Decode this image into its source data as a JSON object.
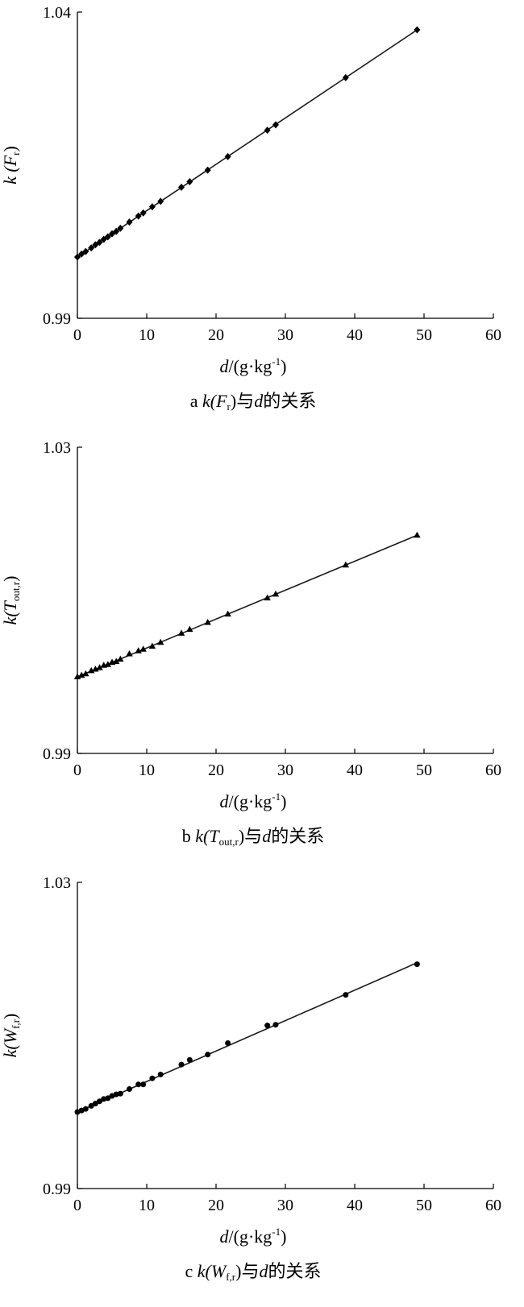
{
  "chart_data": [
    {
      "id": "a",
      "type": "scatter",
      "marker": "diamond",
      "xlabel": {
        "var": "d",
        "unit_pre": "/(g·kg",
        "sup": "-1",
        "unit_post": ")"
      },
      "ylabel": {
        "pre": "k (",
        "var": "F",
        "sub": "r",
        "post": ")"
      },
      "caption": {
        "letter": "a ",
        "pre": "k(",
        "var": "F",
        "sub": "r",
        "post": ")",
        "mid": "与",
        "dvar": "d",
        "tail": "的关系"
      },
      "xlim": [
        0,
        60
      ],
      "ylim": [
        0.99,
        1.04
      ],
      "xticks": [
        "0",
        "10",
        "20",
        "30",
        "40",
        "50",
        "60"
      ],
      "yticks": [
        "0.99",
        "1.04"
      ],
      "fit_line": [
        [
          0,
          1.0
        ],
        [
          49,
          1.0371
        ]
      ],
      "x": [
        0,
        0.6,
        1.2,
        2.0,
        2.6,
        3.2,
        3.8,
        4.4,
        5.0,
        5.6,
        6.2,
        7.5,
        8.8,
        9.5,
        10.8,
        12.0,
        15.0,
        16.2,
        18.8,
        21.7,
        27.4,
        28.6,
        38.7,
        49.0
      ],
      "y": [
        1.0,
        1.0005,
        1.0009,
        1.0015,
        1.002,
        1.0024,
        1.0029,
        1.0033,
        1.0038,
        1.0042,
        1.0047,
        1.0057,
        1.0067,
        1.0072,
        1.0082,
        1.0091,
        1.0114,
        1.0123,
        1.0142,
        1.0164,
        1.0207,
        1.0216,
        1.0293,
        1.0371
      ]
    },
    {
      "id": "b",
      "type": "scatter",
      "marker": "triangle",
      "xlabel": {
        "var": "d",
        "unit_pre": "/(g·kg",
        "sup": "-1",
        "unit_post": ")"
      },
      "ylabel": {
        "pre": "k(",
        "var": "T",
        "sub": "out,r",
        "post": ")"
      },
      "caption": {
        "letter": "b ",
        "pre": "k(",
        "var": "T",
        "sub": "out,r",
        "post": ")",
        "mid": "与",
        "dvar": "d",
        "tail": "的关系"
      },
      "xlim": [
        0,
        60
      ],
      "ylim": [
        0.99,
        1.03
      ],
      "xticks": [
        "0",
        "10",
        "20",
        "30",
        "40",
        "50",
        "60"
      ],
      "yticks": [
        "0.99",
        "1.03"
      ],
      "fit_line": [
        [
          0,
          1.0
        ],
        [
          49,
          1.0185
        ]
      ],
      "x": [
        0,
        0.6,
        1.2,
        2.0,
        2.6,
        3.2,
        3.8,
        4.4,
        5.0,
        5.6,
        6.2,
        7.5,
        8.8,
        9.5,
        10.8,
        12.0,
        15.0,
        16.2,
        18.8,
        21.7,
        27.4,
        28.6,
        38.7,
        49.0
      ],
      "y": [
        1.0,
        1.0002,
        1.0004,
        1.0008,
        1.001,
        1.0012,
        1.0015,
        1.0016,
        1.0019,
        1.002,
        1.0023,
        1.003,
        1.0034,
        1.0036,
        1.004,
        1.0045,
        1.0057,
        1.0062,
        1.0071,
        1.0082,
        1.0103,
        1.0108,
        1.0146,
        1.0185
      ]
    },
    {
      "id": "c",
      "type": "scatter",
      "marker": "circle",
      "xlabel": {
        "var": "d",
        "unit_pre": "/(g·kg",
        "sup": "-1",
        "unit_post": ")"
      },
      "ylabel": {
        "pre": "k(",
        "var": "W",
        "sub": "f,r",
        "post": ")"
      },
      "caption": {
        "letter": "c ",
        "pre": "k(",
        "var": "W",
        "sub": "f,r",
        "post": ")",
        "mid": "与",
        "dvar": "d",
        "tail": "的关系"
      },
      "xlim": [
        0,
        60
      ],
      "ylim": [
        0.99,
        1.03
      ],
      "xticks": [
        "0",
        "10",
        "20",
        "30",
        "40",
        "50",
        "60"
      ],
      "yticks": [
        "0.99",
        "1.03"
      ],
      "fit_line": [
        [
          0,
          1.0
        ],
        [
          49,
          1.0195
        ]
      ],
      "x": [
        0,
        0.6,
        1.2,
        2.0,
        2.6,
        3.2,
        3.8,
        4.4,
        5.0,
        5.6,
        6.2,
        7.5,
        8.8,
        9.5,
        10.8,
        12.0,
        15.0,
        16.2,
        18.8,
        21.7,
        27.4,
        28.6,
        38.7,
        49.0
      ],
      "y": [
        1.0,
        1.0002,
        1.0004,
        1.0008,
        1.0011,
        1.0014,
        1.0017,
        1.0018,
        1.0021,
        1.0023,
        1.0024,
        1.003,
        1.0036,
        1.0036,
        1.0044,
        1.0049,
        1.0062,
        1.0068,
        1.0075,
        1.009,
        1.0113,
        1.0114,
        1.0153,
        1.0193
      ]
    }
  ]
}
